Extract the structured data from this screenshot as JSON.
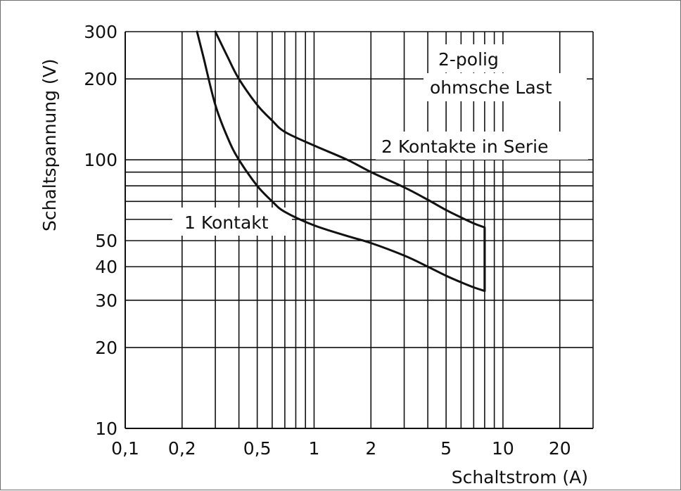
{
  "chart_data": {
    "type": "line",
    "xlabel": "Schaltstrom (A)",
    "ylabel": "Schaltspannung (V)",
    "x_scale": "log",
    "y_scale": "log",
    "xlim": [
      0.1,
      30
    ],
    "ylim": [
      10,
      300
    ],
    "x_ticks": [
      {
        "value": 0.1,
        "label": "0,1"
      },
      {
        "value": 0.2,
        "label": "0,2"
      },
      {
        "value": 0.5,
        "label": "0,5"
      },
      {
        "value": 1,
        "label": "1"
      },
      {
        "value": 2,
        "label": "2"
      },
      {
        "value": 5,
        "label": "5"
      },
      {
        "value": 10,
        "label": "10"
      },
      {
        "value": 20,
        "label": "20"
      }
    ],
    "y_ticks": [
      {
        "value": 10,
        "label": "10"
      },
      {
        "value": 20,
        "label": "20"
      },
      {
        "value": 30,
        "label": "30"
      },
      {
        "value": 40,
        "label": "40"
      },
      {
        "value": 50,
        "label": "50"
      },
      {
        "value": 100,
        "label": "100"
      },
      {
        "value": 200,
        "label": "200"
      },
      {
        "value": 300,
        "label": "300"
      }
    ],
    "grid": true,
    "series": [
      {
        "name": "1 Kontakt",
        "x": [
          0.24,
          0.26,
          0.3,
          0.35,
          0.4,
          0.5,
          0.6,
          0.7,
          1,
          1.5,
          2,
          3,
          4,
          5,
          6,
          7,
          8,
          8,
          8
        ],
        "y": [
          300,
          240,
          160,
          120,
          100,
          80,
          70,
          64,
          57,
          52,
          49,
          44,
          40,
          37,
          35,
          33.5,
          32.5,
          45,
          55
        ]
      },
      {
        "name": "2 Kontakte in Serie",
        "x": [
          0.3,
          0.35,
          0.4,
          0.5,
          0.6,
          0.7,
          1,
          1.5,
          2,
          3,
          4,
          5,
          6,
          7,
          8,
          8
        ],
        "y": [
          300,
          240,
          200,
          160,
          140,
          127,
          113,
          100,
          90,
          79,
          71,
          65,
          61,
          58,
          56,
          32.5
        ]
      }
    ],
    "annotations": [
      {
        "text": "2-polig",
        "id": "anno_2polig"
      },
      {
        "text": "ohmsche Last",
        "id": "anno_ohmsche"
      },
      {
        "text": "2 Kontakte in Serie",
        "id": "anno_serie"
      },
      {
        "text": "1 Kontakt",
        "id": "anno_kontakt"
      }
    ],
    "colors": {
      "line": "#111111",
      "grid": "#111111",
      "background": "#ffffff"
    }
  }
}
